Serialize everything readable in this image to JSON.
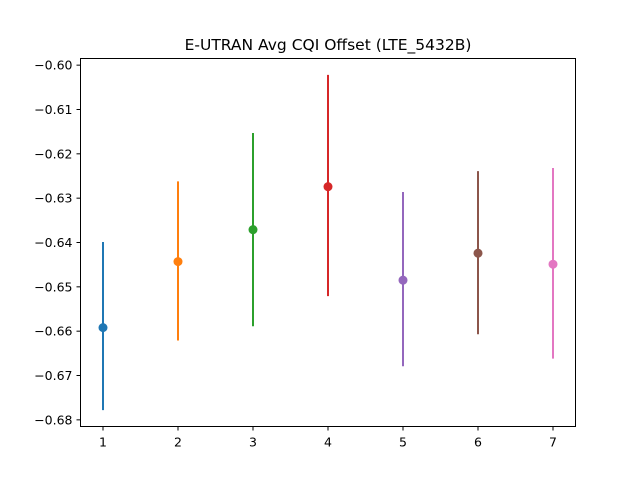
{
  "chart_data": {
    "type": "scatter",
    "title": "E-UTRAN Avg CQI Offset (LTE_5432B)",
    "xlabel": "",
    "ylabel": "",
    "xlim": [
      0.7,
      7.3
    ],
    "ylim": [
      -0.6815,
      -0.5985
    ],
    "x_ticks": [
      1,
      2,
      3,
      4,
      5,
      6,
      7
    ],
    "y_ticks": [
      -0.68,
      -0.67,
      -0.66,
      -0.65,
      -0.64,
      -0.63,
      -0.62,
      -0.61,
      -0.6
    ],
    "y_tick_labels": [
      "−0.68",
      "−0.67",
      "−0.66",
      "−0.65",
      "−0.64",
      "−0.63",
      "−0.62",
      "−0.61",
      "−0.60"
    ],
    "grid": false,
    "points": [
      {
        "x": 1,
        "y": -0.6592,
        "low": -0.6778,
        "high": -0.6399,
        "color": "#1f77b4"
      },
      {
        "x": 2,
        "y": -0.6443,
        "low": -0.6621,
        "high": -0.6262,
        "color": "#ff7f0e"
      },
      {
        "x": 3,
        "y": -0.6371,
        "low": -0.6589,
        "high": -0.6153,
        "color": "#2ca02c"
      },
      {
        "x": 4,
        "y": -0.6274,
        "low": -0.6521,
        "high": -0.6022,
        "color": "#d62728"
      },
      {
        "x": 5,
        "y": -0.6485,
        "low": -0.6679,
        "high": -0.6286,
        "color": "#9467bd"
      },
      {
        "x": 6,
        "y": -0.6424,
        "low": -0.6607,
        "high": -0.6239,
        "color": "#8c564b"
      },
      {
        "x": 7,
        "y": -0.6449,
        "low": -0.6662,
        "high": -0.6232,
        "color": "#e377c2"
      }
    ]
  }
}
